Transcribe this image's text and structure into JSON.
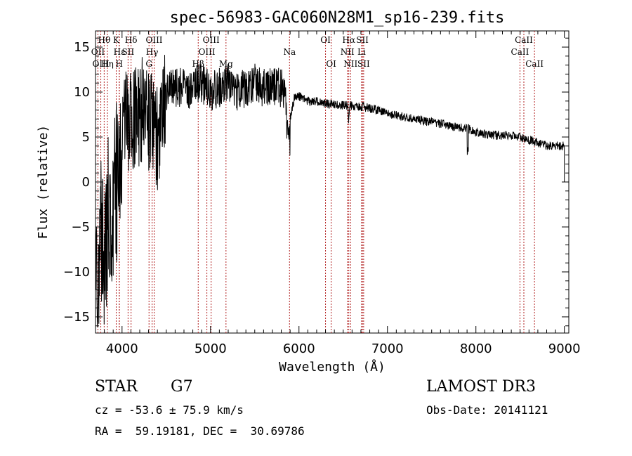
{
  "chart_data": {
    "type": "line",
    "title": "spec-56983-GAC060N28M1_sp16-239.fits",
    "xlabel": "Wavelength (Å)",
    "ylabel": "Flux (relative)",
    "xlim": [
      3700,
      9050
    ],
    "ylim": [
      -16.8,
      16.8
    ],
    "xticks": [
      4000,
      5000,
      6000,
      7000,
      8000,
      9000
    ],
    "yticks": [
      -15,
      -10,
      -5,
      0,
      5,
      10,
      15
    ],
    "spectrum_anchors": [
      [
        3700,
        0
      ],
      [
        3720,
        -12
      ],
      [
        3760,
        -6
      ],
      [
        3800,
        -10
      ],
      [
        3840,
        -3
      ],
      [
        3880,
        -7
      ],
      [
        3920,
        2
      ],
      [
        3960,
        -2
      ],
      [
        4000,
        5
      ],
      [
        4050,
        8
      ],
      [
        4100,
        6
      ],
      [
        4150,
        8
      ],
      [
        4200,
        7
      ],
      [
        4250,
        9
      ],
      [
        4300,
        6
      ],
      [
        4350,
        7
      ],
      [
        4400,
        5
      ],
      [
        4450,
        8
      ],
      [
        4500,
        10
      ],
      [
        4600,
        10.5
      ],
      [
        4700,
        10.5
      ],
      [
        4800,
        10
      ],
      [
        4850,
        11
      ],
      [
        4900,
        11
      ],
      [
        5000,
        10
      ],
      [
        5100,
        10.5
      ],
      [
        5200,
        11
      ],
      [
        5300,
        10
      ],
      [
        5400,
        10.5
      ],
      [
        5500,
        11
      ],
      [
        5600,
        10.5
      ],
      [
        5700,
        10.5
      ],
      [
        5800,
        10.5
      ],
      [
        5850,
        10
      ],
      [
        5900,
        7
      ],
      [
        5950,
        9.5
      ],
      [
        6000,
        9.5
      ],
      [
        6100,
        9
      ],
      [
        6200,
        9
      ],
      [
        6300,
        8.7
      ],
      [
        6400,
        8.6
      ],
      [
        6500,
        8.5
      ],
      [
        6600,
        8.5
      ],
      [
        6700,
        8.4
      ],
      [
        6800,
        8.2
      ],
      [
        6900,
        8
      ],
      [
        7000,
        7.6
      ],
      [
        7200,
        7.2
      ],
      [
        7400,
        6.8
      ],
      [
        7600,
        6.5
      ],
      [
        7800,
        6
      ],
      [
        7900,
        6
      ],
      [
        8000,
        5.5
      ],
      [
        8200,
        5.2
      ],
      [
        8400,
        5.2
      ],
      [
        8500,
        5
      ],
      [
        8700,
        4.4
      ],
      [
        8800,
        4
      ],
      [
        8900,
        4
      ],
      [
        9000,
        4
      ]
    ],
    "spectral_lines": [
      {
        "label": "Hθ",
        "x": 3798,
        "row": 1
      },
      {
        "label": "K",
        "x": 3934,
        "row": 1
      },
      {
        "label": "Hδ",
        "x": 4102,
        "row": 1
      },
      {
        "label": "OII",
        "x": 3727,
        "row": 2
      },
      {
        "label": "Hε",
        "x": 3970,
        "row": 2
      },
      {
        "label": "SII",
        "x": 4068,
        "row": 2
      },
      {
        "label": "OIII",
        "x": 3760,
        "row": 3
      },
      {
        "label": "Hη",
        "x": 3835,
        "row": 3
      },
      {
        "label": "H",
        "x": 3968,
        "row": 3
      },
      {
        "label": "OIII",
        "x": 4363,
        "row": 1
      },
      {
        "label": "Hγ",
        "x": 4340,
        "row": 2
      },
      {
        "label": "G",
        "x": 4305,
        "row": 3
      },
      {
        "label": "OIII",
        "x": 5007,
        "row": 1
      },
      {
        "label": "OIII",
        "x": 4959,
        "row": 2
      },
      {
        "label": "Hβ",
        "x": 4861,
        "row": 3
      },
      {
        "label": "Mg",
        "x": 5175,
        "row": 3
      },
      {
        "label": "Na",
        "x": 5893,
        "row": 2
      },
      {
        "label": "OI",
        "x": 6300,
        "row": 1
      },
      {
        "label": "OI",
        "x": 6364,
        "row": 3
      },
      {
        "label": "Hα",
        "x": 6563,
        "row": 1
      },
      {
        "label": "SII",
        "x": 6717,
        "row": 1
      },
      {
        "label": "NII",
        "x": 6548,
        "row": 2
      },
      {
        "label": "Li",
        "x": 6708,
        "row": 2
      },
      {
        "label": "NII",
        "x": 6583,
        "row": 3
      },
      {
        "label": "SII",
        "x": 6731,
        "row": 3
      },
      {
        "label": "CaII",
        "x": 8542,
        "row": 1
      },
      {
        "label": "CaII",
        "x": 8498,
        "row": 2
      },
      {
        "label": "CaII",
        "x": 8662,
        "row": 3
      }
    ]
  },
  "info": {
    "object_class": "STAR",
    "subclass": "G7",
    "survey": "LAMOST DR3",
    "velocity": "cz = -53.6 ± 75.9 km/s",
    "obs_date": "Obs-Date: 20141121",
    "coords": "RA =  59.19181, DEC =  30.69786"
  }
}
